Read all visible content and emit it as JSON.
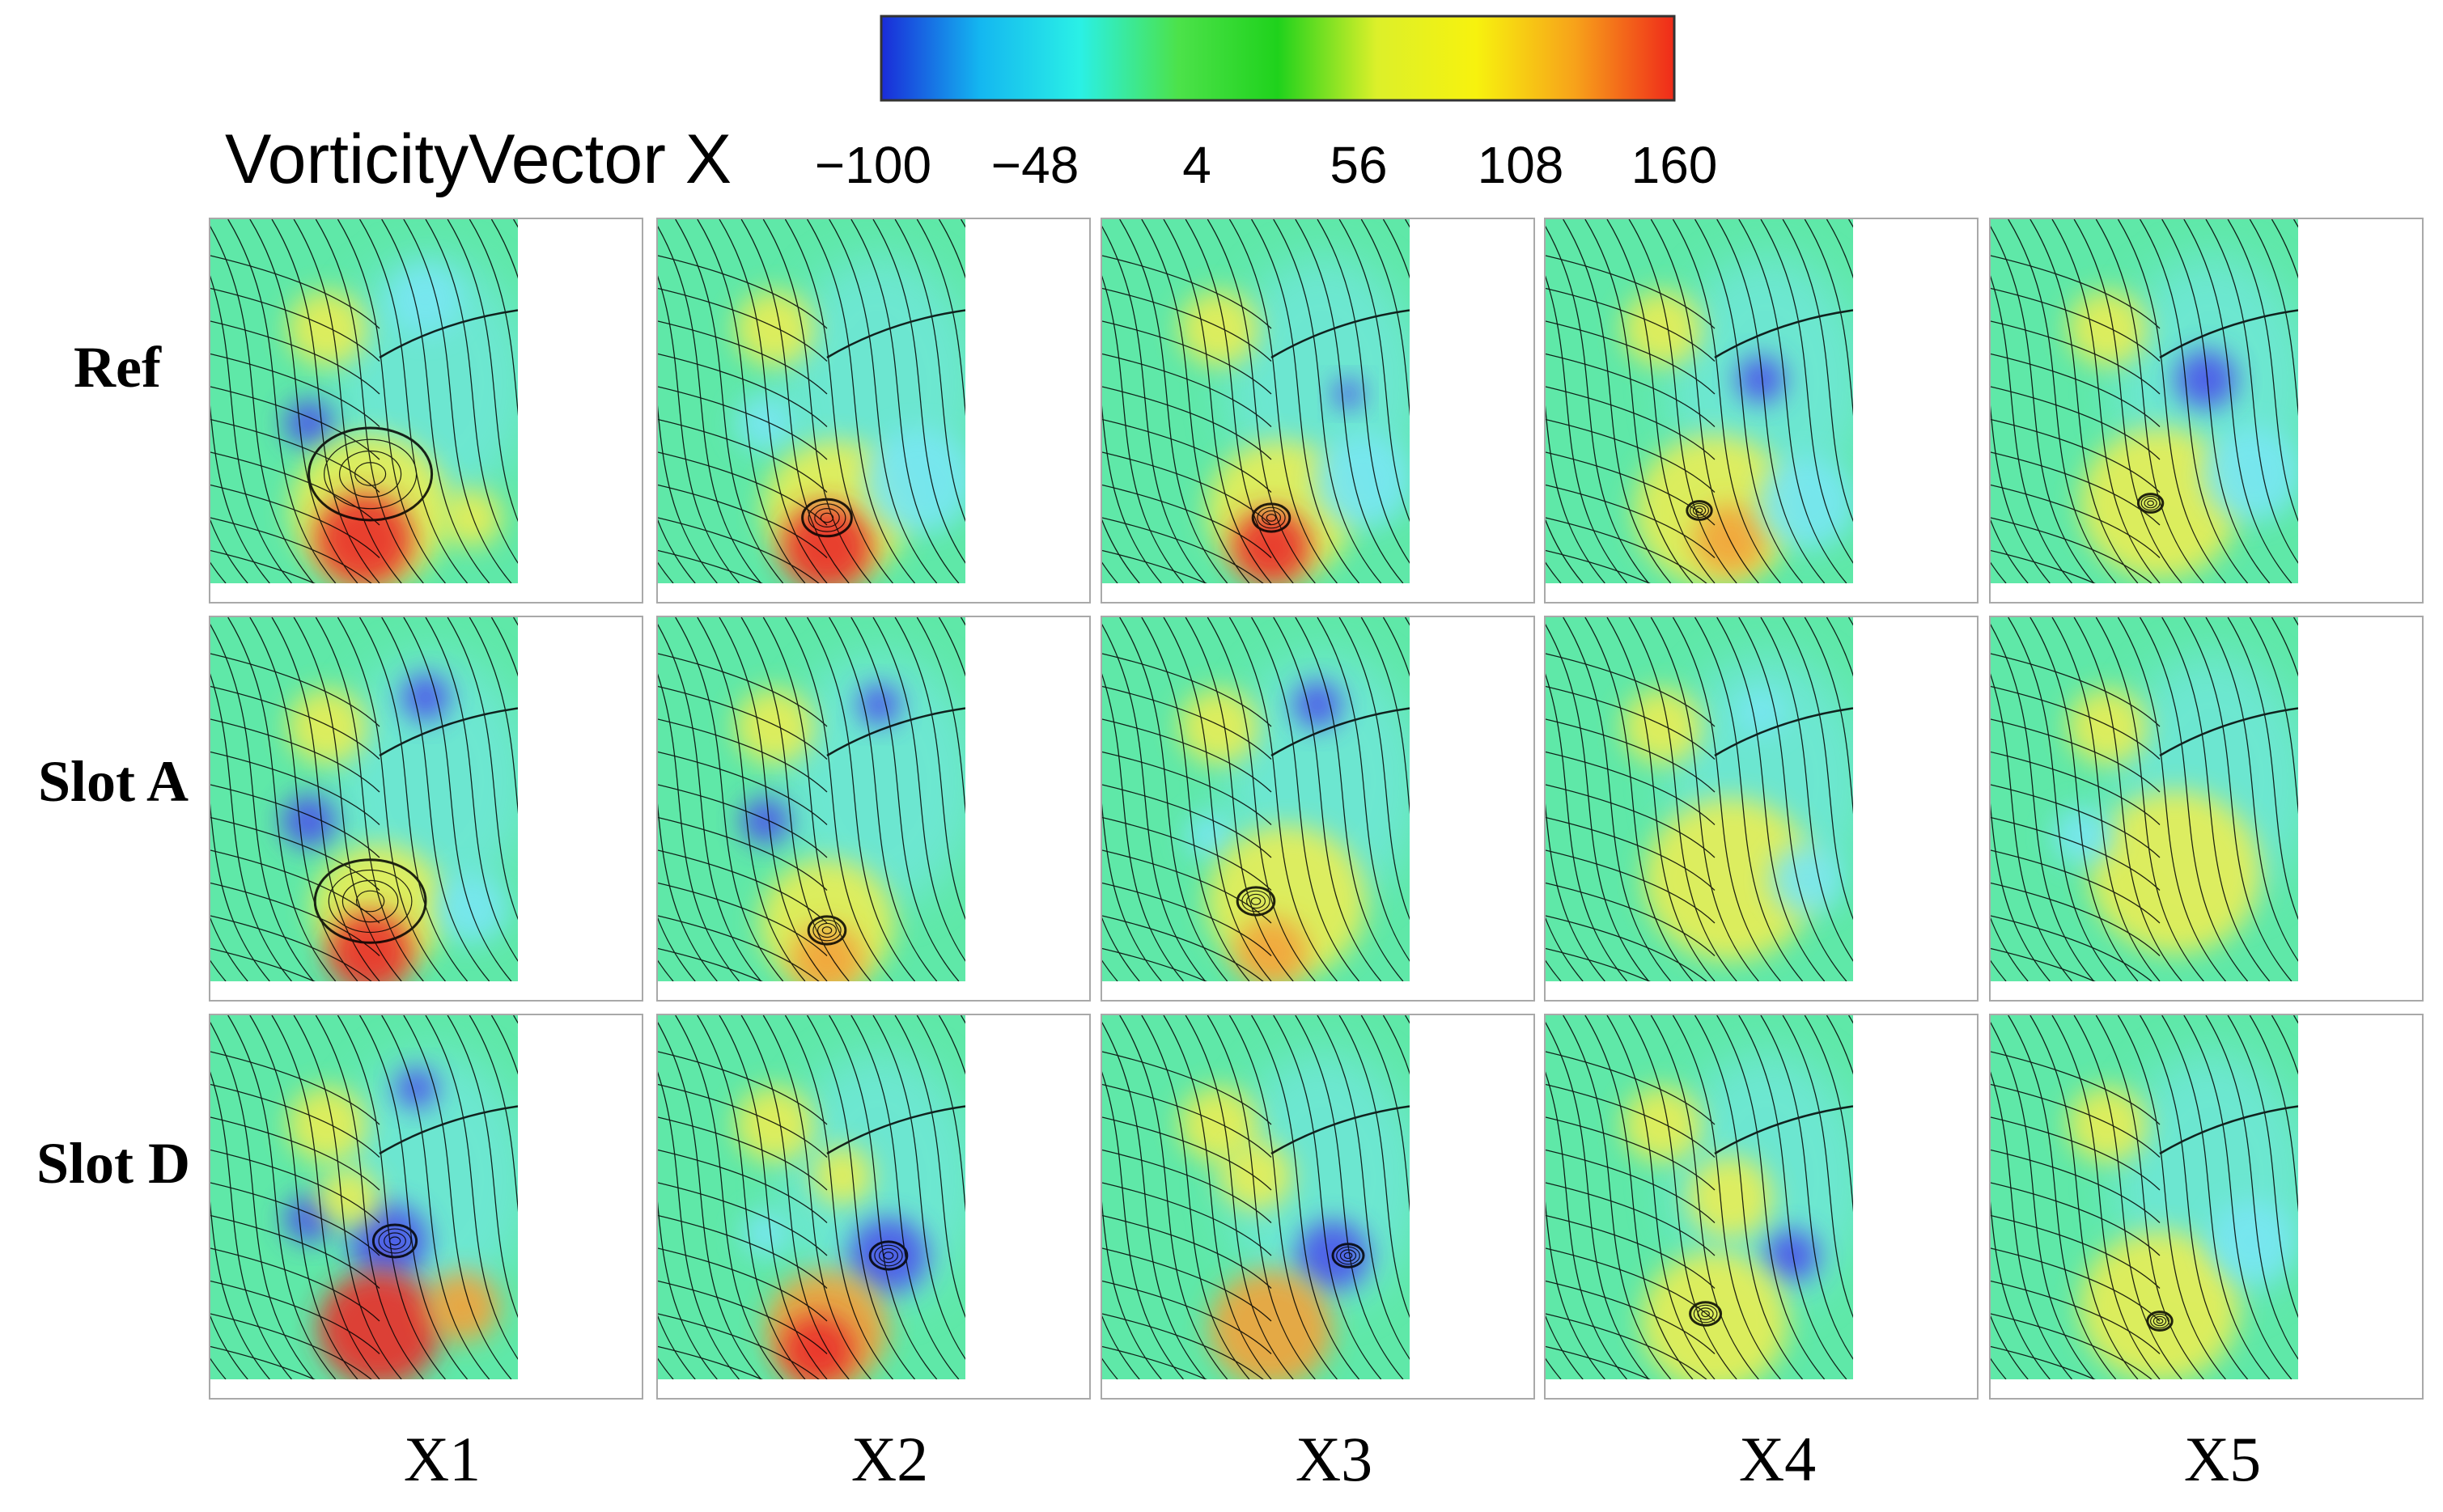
{
  "colorbar": {
    "title": "VorticityVector X",
    "ticks": [
      "−100",
      "−48",
      "4",
      "56",
      "108",
      "160"
    ],
    "colors": [
      "#1a2bd8",
      "#14b7f0",
      "#2af0e6",
      "#4ce24a",
      "#1fd21c",
      "#dcf02a",
      "#f7f20e",
      "#f7a21a",
      "#ef2a1a"
    ]
  },
  "rows": [
    "Ref",
    "Slot A",
    "Slot D"
  ],
  "columns": [
    "X1",
    "X2",
    "X3",
    "X4",
    "X5"
  ],
  "field_colors": {
    "background": "#5fe8a8",
    "light_blue": "#78e6f2",
    "blue": "#4c55ea",
    "yellow": "#e9ee55",
    "orange": "#f3a33a",
    "red": "#ea2f2a",
    "streamline": "#000000",
    "frame": "#a9a9a9"
  }
}
